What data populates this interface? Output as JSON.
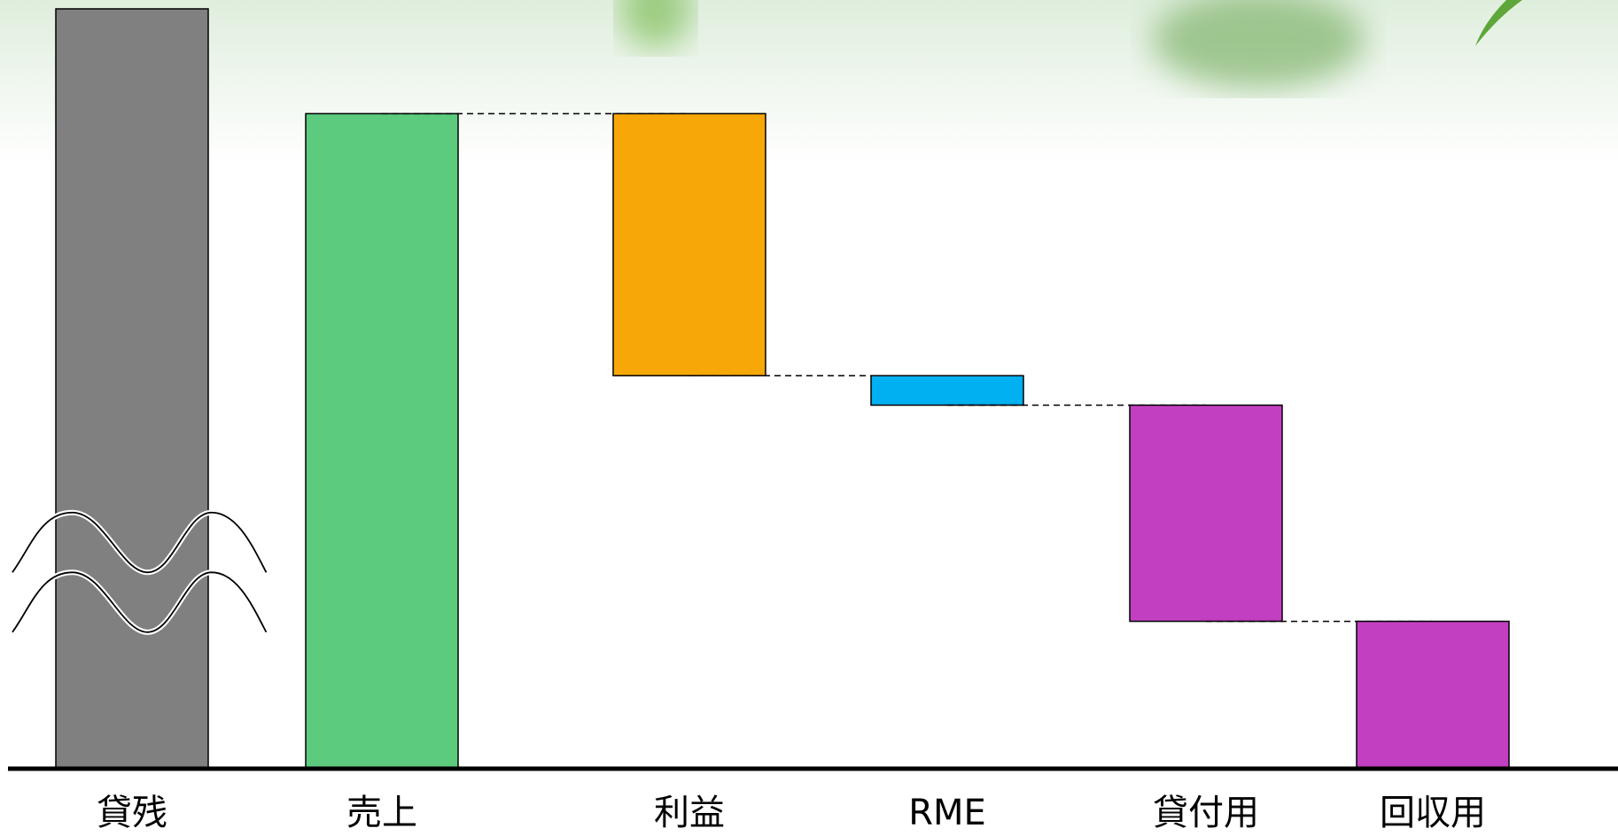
{
  "chart_data": {
    "type": "waterfall",
    "categories": [
      "貸残",
      "売上",
      "利益",
      "RME",
      "貸付用",
      "回収用"
    ],
    "values": [
      116,
      100,
      -40,
      -4.5,
      -33,
      22.5
    ],
    "measure": [
      "absolute",
      "absolute",
      "relative",
      "relative",
      "relative",
      "absolute"
    ],
    "colors": [
      "#808080",
      "#5dcb7e",
      "#f7a707",
      "#00b0f0",
      "#c23fc2",
      "#c23fc2"
    ],
    "ylim": [
      0,
      116
    ]
  }
}
